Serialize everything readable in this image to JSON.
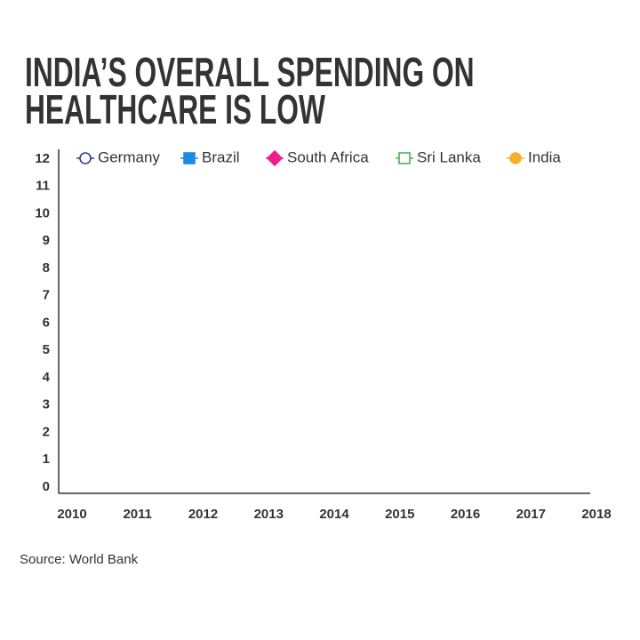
{
  "chart_data": {
    "type": "line",
    "title": "INDIA’S OVERALL SPENDING ON HEALTHCARE IS LOW",
    "source": "Source: World Bank",
    "x": [
      2010,
      2011,
      2012,
      2013,
      2014,
      2015,
      2016,
      2017,
      2018
    ],
    "xlim": [
      2010,
      2018
    ],
    "xticks": [
      2010,
      2011,
      2012,
      2013,
      2014,
      2015,
      2016,
      2017,
      2018
    ],
    "ylim": [
      0,
      12
    ],
    "yticks": [
      0,
      1,
      2,
      3,
      4,
      5,
      6,
      7,
      8,
      9,
      10,
      11,
      12
    ],
    "grid": false,
    "legend": "top",
    "series": [
      {
        "name": "Germany",
        "color": "#2e3d8f",
        "marker": "open-circle",
        "values": [
          null,
          null,
          null,
          null,
          null,
          null,
          null,
          null,
          null
        ]
      },
      {
        "name": "Brazil",
        "color": "#1e88e5",
        "marker": "square",
        "values": [
          null,
          null,
          null,
          null,
          null,
          null,
          null,
          null,
          null
        ]
      },
      {
        "name": "South Africa",
        "color": "#e91e8c",
        "marker": "diamond",
        "values": [
          null,
          null,
          null,
          null,
          null,
          null,
          null,
          null,
          null
        ]
      },
      {
        "name": "Sri Lanka",
        "color": "#4caf50",
        "marker": "open-square",
        "values": [
          null,
          null,
          null,
          null,
          null,
          null,
          null,
          null,
          null
        ]
      },
      {
        "name": "India",
        "color": "#f5b027",
        "marker": "circle",
        "values": [
          null,
          null,
          null,
          null,
          null,
          null,
          null,
          null,
          null
        ]
      }
    ]
  }
}
